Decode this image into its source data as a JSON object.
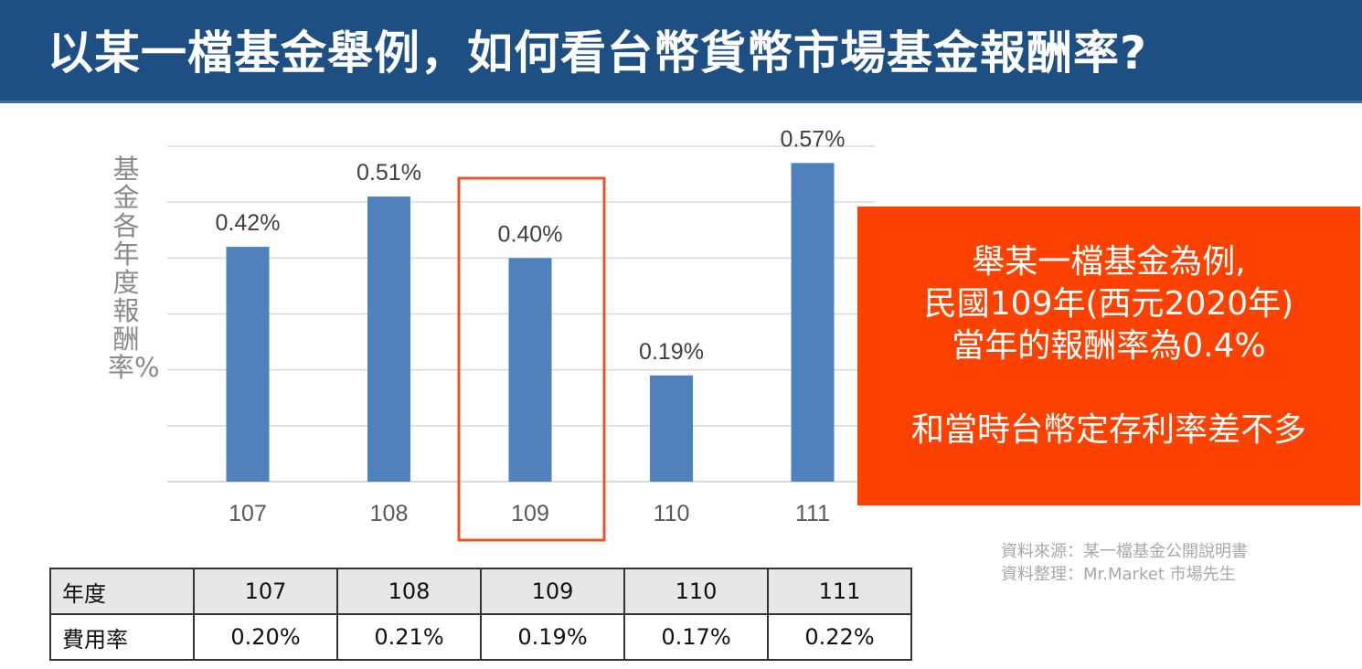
{
  "title": "以某一檔基金舉例，如何看台幣貨幣市場基金報酬率?",
  "colors": {
    "title_bg": "#1d4f82",
    "bar": "#4f81bd",
    "highlight": "#e8532a",
    "callout_bg": "#fc4100"
  },
  "chart_data": {
    "type": "bar",
    "categories": [
      "107",
      "108",
      "109",
      "110",
      "111"
    ],
    "values": [
      0.42,
      0.51,
      0.4,
      0.19,
      0.57
    ],
    "value_labels": [
      "0.42%",
      "0.51%",
      "0.40%",
      "0.19%",
      "0.57%"
    ],
    "ylabel": "基金各年度報酬率%",
    "ylim": [
      0,
      0.6
    ],
    "grid": true,
    "highlighted_category": "109"
  },
  "callout": {
    "line1": "舉某一檔基金為例,",
    "line2": "民國109年(西元2020年)",
    "line3": "當年的報酬率為0.4%",
    "line4": "和當時台幣定存利率差不多"
  },
  "source": {
    "line1": "資料來源：某一檔基金公開說明書",
    "line2": "資料整理：Mr.Market 市場先生"
  },
  "fee_table": {
    "header_label": "年度",
    "row_label": "費用率",
    "years": [
      "107",
      "108",
      "109",
      "110",
      "111"
    ],
    "rates": [
      "0.20%",
      "0.21%",
      "0.19%",
      "0.17%",
      "0.22%"
    ]
  }
}
